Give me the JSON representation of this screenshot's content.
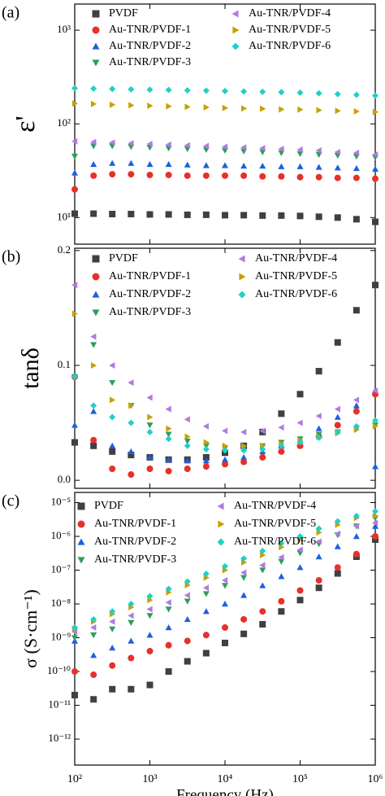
{
  "chart_data": [
    {
      "type": "scatter",
      "label": "(a)",
      "ylabel": "ε'",
      "xscale": "log",
      "yscale": "log",
      "legend": "top",
      "x": [
        100,
        178,
        316,
        562,
        1000,
        1778,
        3162,
        5623,
        10000,
        17783,
        31623,
        56234,
        100000,
        177828,
        316228,
        562341,
        1000000
      ],
      "xlim": [
        100,
        1000000
      ],
      "ylim": [
        5.2,
        1900
      ],
      "yticks": [
        {
          "value": 10,
          "label": "10¹"
        },
        {
          "value": 100,
          "label": "10²"
        },
        {
          "value": 1000,
          "label": "10³"
        }
      ],
      "series": [
        {
          "name": "PVDF",
          "color": "#404040",
          "marker": "square",
          "values": [
            11,
            11,
            10.9,
            10.9,
            10.8,
            10.8,
            10.7,
            10.7,
            10.6,
            10.6,
            10.5,
            10.5,
            10.4,
            10.2,
            10,
            9.6,
            9
          ]
        },
        {
          "name": "Au-TNR/PVDF-1",
          "color": "#e8302a",
          "marker": "circle",
          "values": [
            20,
            28,
            29,
            29,
            28.5,
            28.5,
            28,
            28,
            28,
            28,
            27.5,
            27.5,
            27,
            27,
            26.5,
            26.5,
            26
          ]
        },
        {
          "name": "Au-TNR/PVDF-2",
          "color": "#1f5fe0",
          "marker": "up",
          "values": [
            30,
            37,
            38,
            38,
            37,
            37,
            36.5,
            36,
            36,
            35.5,
            35.5,
            35,
            35,
            34.5,
            34,
            33.5,
            33
          ]
        },
        {
          "name": "Au-TNR/PVDF-3",
          "color": "#2e9e5a",
          "marker": "down",
          "values": [
            45,
            58,
            58,
            57,
            56,
            55,
            54,
            53,
            52,
            51,
            50,
            49,
            48,
            47,
            46,
            45,
            44
          ]
        },
        {
          "name": "Au-TNR/PVDF-4",
          "color": "#b07be0",
          "marker": "left",
          "values": [
            65,
            64,
            63,
            62,
            61,
            60,
            59,
            58,
            57,
            56,
            55,
            54,
            53,
            52,
            50,
            49,
            47
          ]
        },
        {
          "name": "Au-TNR/PVDF-5",
          "color": "#c8a000",
          "marker": "right",
          "values": [
            165,
            163,
            160,
            158,
            156,
            154,
            152,
            150,
            148,
            146,
            145,
            143,
            142,
            140,
            138,
            136,
            134
          ]
        },
        {
          "name": "Au-TNR/PVDF-6",
          "color": "#20d0c8",
          "marker": "diamond",
          "values": [
            240,
            238,
            236,
            234,
            232,
            230,
            228,
            226,
            224,
            222,
            220,
            218,
            215,
            212,
            208,
            204,
            200
          ]
        }
      ]
    },
    {
      "type": "scatter",
      "label": "(b)",
      "ylabel": "tanδ",
      "xscale": "log",
      "yscale": "linear",
      "legend": "top",
      "x": [
        100,
        178,
        316,
        562,
        1000,
        1778,
        3162,
        5623,
        10000,
        17783,
        31623,
        56234,
        100000,
        177828,
        316228,
        562341,
        1000000
      ],
      "xlim": [
        100,
        1000000
      ],
      "ylim": [
        -0.007,
        0.202
      ],
      "yticks": [
        {
          "value": 0,
          "label": "0.0"
        },
        0.1,
        0.2
      ],
      "series": [
        {
          "name": "PVDF",
          "color": "#404040",
          "marker": "square",
          "values": [
            0.033,
            0.03,
            0.025,
            0.022,
            0.02,
            0.018,
            0.018,
            0.02,
            0.024,
            0.03,
            0.042,
            0.058,
            0.075,
            0.095,
            0.12,
            0.148,
            0.17
          ]
        },
        {
          "name": "Au-TNR/PVDF-1",
          "color": "#e8302a",
          "marker": "circle",
          "values": [
            0.09,
            0.035,
            0.01,
            0.005,
            0.01,
            0.008,
            0.01,
            0.012,
            0.014,
            0.016,
            0.02,
            0.025,
            0.03,
            0.038,
            0.048,
            0.06,
            0.075
          ]
        },
        {
          "name": "Au-TNR/PVDF-2",
          "color": "#1f5fe0",
          "marker": "up",
          "values": [
            0.048,
            0.06,
            0.03,
            0.025,
            0.02,
            0.018,
            0.017,
            0.017,
            0.018,
            0.02,
            0.025,
            0.03,
            0.035,
            0.045,
            0.055,
            0.065,
            0.012
          ]
        },
        {
          "name": "Au-TNR/PVDF-3",
          "color": "#2e9e5a",
          "marker": "down",
          "values": [
            0.09,
            0.118,
            0.085,
            0.065,
            0.048,
            0.04,
            0.034,
            0.03,
            0.028,
            0.028,
            0.03,
            0.033,
            0.036,
            0.04,
            0.042,
            0.045,
            0.048
          ]
        },
        {
          "name": "Au-TNR/PVDF-4",
          "color": "#b07be0",
          "marker": "left",
          "values": [
            0.17,
            0.125,
            0.1,
            0.085,
            0.072,
            0.062,
            0.053,
            0.047,
            0.043,
            0.042,
            0.043,
            0.046,
            0.05,
            0.056,
            0.062,
            0.07,
            0.078
          ]
        },
        {
          "name": "Au-TNR/PVDF-5",
          "color": "#c8a000",
          "marker": "right",
          "values": [
            0.145,
            0.1,
            0.07,
            0.065,
            0.055,
            0.045,
            0.038,
            0.033,
            0.03,
            0.03,
            0.03,
            0.032,
            0.035,
            0.038,
            0.041,
            0.044,
            0.047
          ]
        },
        {
          "name": "Au-TNR/PVDF-6",
          "color": "#20d0c8",
          "marker": "diamond",
          "values": [
            0.09,
            0.065,
            0.055,
            0.05,
            0.042,
            0.036,
            0.03,
            0.027,
            0.026,
            0.026,
            0.027,
            0.03,
            0.033,
            0.037,
            0.042,
            0.047,
            0.052
          ]
        }
      ]
    },
    {
      "type": "scatter",
      "label": "(c)",
      "ylabel": "σ (S·cm⁻¹)",
      "xlabel": "Frequency (Hz)",
      "xscale": "log",
      "yscale": "log",
      "legend": "top",
      "x": [
        100,
        178,
        316,
        562,
        1000,
        1778,
        3162,
        5623,
        10000,
        17783,
        31623,
        56234,
        100000,
        177828,
        316228,
        562341,
        1000000
      ],
      "xlim": [
        100,
        1000000
      ],
      "xticks": [
        {
          "value": 100,
          "label": "10²"
        },
        {
          "value": 1000,
          "label": "10³"
        },
        {
          "value": 10000,
          "label": "10⁴"
        },
        {
          "value": 100000,
          "label": "10⁵"
        },
        {
          "value": 1000000,
          "label": "10⁶"
        }
      ],
      "ylim": [
        1.7e-13,
        2e-05
      ],
      "yticks": [
        {
          "value": 1e-12,
          "label": "10⁻¹²"
        },
        {
          "value": 1e-11,
          "label": "10⁻¹¹"
        },
        {
          "value": 1e-10,
          "label": "10⁻¹⁰"
        },
        {
          "value": 1e-09,
          "label": "10⁻⁹"
        },
        {
          "value": 1e-08,
          "label": "10⁻⁸"
        },
        {
          "value": 1e-07,
          "label": "10⁻⁷"
        },
        {
          "value": 1e-06,
          "label": "10⁻⁶"
        },
        {
          "value": 1e-05,
          "label": "10⁻⁵"
        }
      ],
      "series": [
        {
          "name": "PVDF",
          "color": "#404040",
          "marker": "square",
          "values": [
            2e-11,
            1.5e-11,
            3e-11,
            3e-11,
            4e-11,
            1e-10,
            2e-10,
            3.5e-10,
            7e-10,
            1.3e-09,
            2.5e-09,
            6e-09,
            1.3e-08,
            3e-08,
            8e-08,
            2.5e-07,
            8e-07
          ]
        },
        {
          "name": "Au-TNR/PVDF-1",
          "color": "#e8302a",
          "marker": "circle",
          "values": [
            1e-10,
            8e-11,
            1.5e-10,
            2.5e-10,
            4e-10,
            6e-10,
            8e-10,
            1.2e-09,
            2e-09,
            3.5e-09,
            6e-09,
            1.2e-08,
            2.5e-08,
            5e-08,
            1.2e-07,
            3e-07,
            1e-06
          ]
        },
        {
          "name": "Au-TNR/PVDF-2",
          "color": "#1f5fe0",
          "marker": "up",
          "values": [
            8e-10,
            3e-10,
            5e-10,
            8e-10,
            1.2e-09,
            2e-09,
            3.5e-09,
            6e-09,
            1e-08,
            1.8e-08,
            3.5e-08,
            6.5e-08,
            1.2e-07,
            2.5e-07,
            5e-07,
            1e-06,
            2e-06
          ]
        },
        {
          "name": "Au-TNR/PVDF-3",
          "color": "#2e9e5a",
          "marker": "down",
          "values": [
            1e-09,
            1.2e-09,
            1.8e-09,
            2.8e-09,
            4.5e-09,
            7e-09,
            1.2e-08,
            2e-08,
            3.5e-08,
            6e-08,
            1e-07,
            1.8e-07,
            3.2e-07,
            6e-07,
            1.1e-06,
            2e-06,
            3.5e-06
          ]
        },
        {
          "name": "Au-TNR/PVDF-4",
          "color": "#b07be0",
          "marker": "left",
          "values": [
            1.5e-09,
            2e-09,
            3e-09,
            4.5e-09,
            7e-09,
            1.1e-08,
            1.8e-08,
            3e-08,
            5e-08,
            8.5e-08,
            1.4e-07,
            2.4e-07,
            4e-07,
            7e-07,
            1.2e-06,
            2e-06,
            2.5e-06
          ]
        },
        {
          "name": "Au-TNR/PVDF-5",
          "color": "#c8a000",
          "marker": "right",
          "values": [
            1.8e-09,
            3e-09,
            5e-09,
            8e-09,
            1.3e-08,
            2.2e-08,
            3.6e-08,
            6e-08,
            1e-07,
            1.7e-07,
            2.8e-07,
            4.8e-07,
            8e-07,
            1.3e-06,
            2.2e-06,
            3.5e-06,
            4e-06
          ]
        },
        {
          "name": "Au-TNR/PVDF-6",
          "color": "#20d0c8",
          "marker": "diamond",
          "values": [
            2e-09,
            3.5e-09,
            6e-09,
            1e-08,
            1.7e-08,
            2.8e-08,
            4.6e-08,
            7.8e-08,
            1.3e-07,
            2.2e-07,
            3.7e-07,
            6.2e-07,
            1e-06,
            1.7e-06,
            2.8e-06,
            4e-06,
            5.5e-06
          ]
        }
      ]
    }
  ]
}
